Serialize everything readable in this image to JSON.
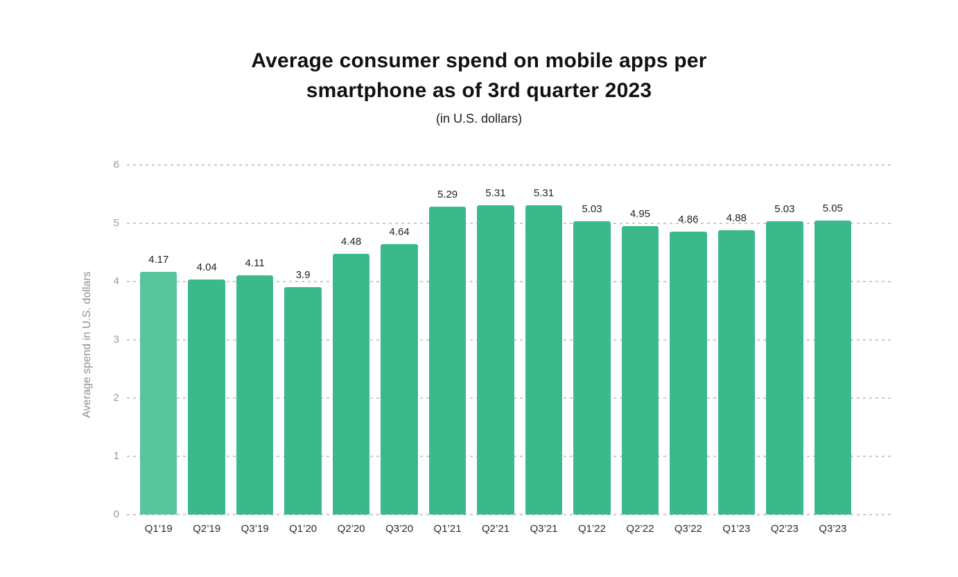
{
  "header": {
    "title_line1": "Average consumer spend on mobile apps per",
    "title_line2": "smartphone as of 3rd quarter 2023",
    "subtitle": "(in U.S. dollars)"
  },
  "chart_data": {
    "type": "bar",
    "title": "Average consumer spend on mobile apps per smartphone as of 3rd quarter 2023",
    "subtitle": "(in U.S. dollars)",
    "xlabel": "",
    "ylabel": "Average spend in U.S. dollars",
    "categories": [
      "Q1’19",
      "Q2’19",
      "Q3’19",
      "Q1’20",
      "Q2’20",
      "Q3’20",
      "Q1’21",
      "Q2’21",
      "Q3’21",
      "Q1’22",
      "Q2’22",
      "Q3’22",
      "Q1’23",
      "Q2’23",
      "Q3’23"
    ],
    "values": [
      4.17,
      4.04,
      4.11,
      3.9,
      4.48,
      4.64,
      5.29,
      5.31,
      5.31,
      5.03,
      4.95,
      4.86,
      4.88,
      5.03,
      5.05
    ],
    "value_labels": [
      "4.17",
      "4.04",
      "4.11",
      "3.9",
      "4.48",
      "4.64",
      "5.29",
      "5.31",
      "5.31",
      "5.03",
      "4.95",
      "4.86",
      "4.88",
      "5.03",
      "5.05"
    ],
    "ylim": [
      0,
      6
    ],
    "yticks": [
      0,
      1,
      2,
      3,
      4,
      5,
      6
    ],
    "grid": "horizontal-dashed",
    "legend": "none",
    "colors": {
      "bar": "#3cb98b",
      "bar_first": "#57c69e",
      "gridline": "#c9c9c9",
      "tick_text": "#9a9a9a",
      "axis_title_text": "#8f8f8f",
      "value_label_text": "#1f1f1f",
      "category_label_text": "#2b2b2b",
      "title_text": "#111111",
      "background": "#ffffff"
    }
  }
}
